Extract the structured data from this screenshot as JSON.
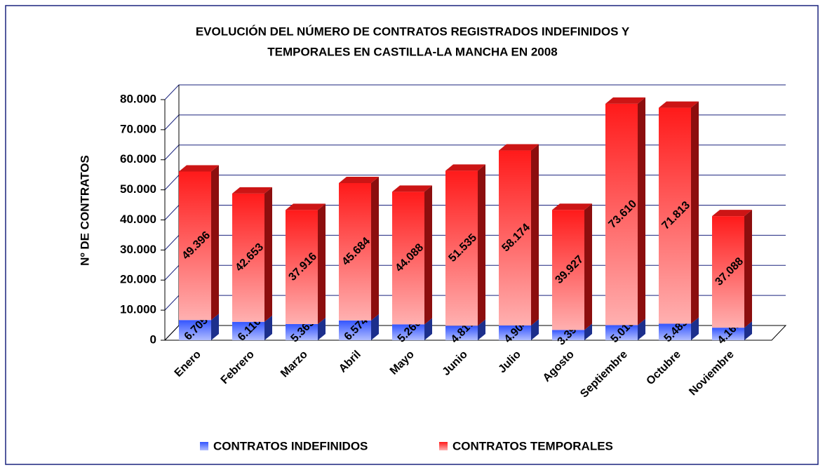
{
  "chart_data": {
    "type": "stacked-bar-3d",
    "title": [
      "EVOLUCIÓN DEL NÚMERO DE CONTRATOS REGISTRADOS INDEFINIDOS Y",
      "TEMPORALES EN CASTILLA-LA MANCHA EN 2008"
    ],
    "y_label": "Nº DE CONTRATOS",
    "categories": [
      "Enero",
      "Febrero",
      "Marzo",
      "Abril",
      "Mayo",
      "Junio",
      "Julio",
      "Agosto",
      "Septiembre",
      "Octubre",
      "Noviembre"
    ],
    "series": [
      {
        "name": "CONTRATOS INDEFINIDOS",
        "color": "#3355ff",
        "light": "#b0bcff",
        "values": [
          6705,
          6116,
          5365,
          6574,
          5260,
          4817,
          4904,
          3398,
          5010,
          5483,
          4165
        ],
        "value_labels": [
          "6.705",
          "6.116",
          "5.365",
          "6.574",
          "5.260",
          "4.817",
          "4.904",
          "3.398",
          "5.010",
          "5.483",
          "4.165"
        ]
      },
      {
        "name": "CONTRATOS TEMPORALES",
        "color": "#ff1a1a",
        "light": "#ffb0b0",
        "values": [
          49396,
          42653,
          37916,
          45684,
          44088,
          51535,
          58174,
          39927,
          73610,
          71813,
          37088
        ],
        "value_labels": [
          "49.396",
          "42.653",
          "37.916",
          "45.684",
          "44.088",
          "51.535",
          "58.174",
          "39.927",
          "73.610",
          "71.813",
          "37.088"
        ]
      }
    ],
    "ylim": [
      0,
      80000
    ],
    "yticks": [
      0,
      {
        "value": 10000,
        "label": "10.000"
      },
      {
        "value": 20000,
        "label": "20.000"
      },
      {
        "value": 30000,
        "label": "30.000"
      },
      {
        "value": 40000,
        "label": "40.000"
      },
      {
        "value": 50000,
        "label": "50.000"
      },
      {
        "value": 60000,
        "label": "60.000"
      },
      {
        "value": 70000,
        "label": "70.000"
      },
      {
        "value": 80000,
        "label": "80.000"
      }
    ],
    "grid": true,
    "legend": "bottom"
  }
}
